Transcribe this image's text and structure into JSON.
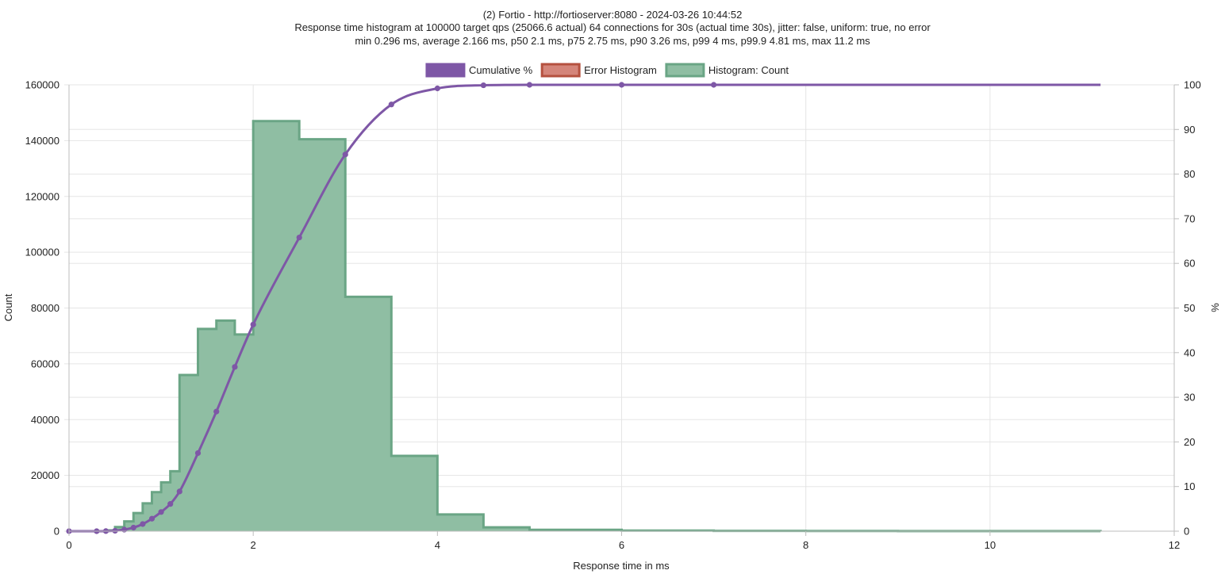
{
  "chart_data": {
    "type": "histogram",
    "title_lines": [
      "(2) Fortio - http://fortioserver:8080 - 2024-03-26 10:44:52",
      "Response time histogram at 100000 target qps (25066.6 actual) 64 connections for 30s (actual time 30s), jitter: false, uniform: true, no error",
      "min 0.296 ms, average 2.166 ms, p50 2.1 ms, p75 2.75 ms, p90 3.26 ms, p99 4 ms, p99.9 4.81 ms, max 11.2 ms"
    ],
    "xlabel": "Response time in ms",
    "ylabel_left": "Count",
    "ylabel_right": "%",
    "xlim": [
      0,
      12
    ],
    "ylim_left": [
      0,
      160000
    ],
    "ylim_right": [
      0,
      100
    ],
    "x_ticks": [
      "0",
      "2",
      "4",
      "6",
      "8",
      "10",
      "12"
    ],
    "y_left_ticks": [
      "0",
      "20000",
      "40000",
      "60000",
      "80000",
      "100000",
      "120000",
      "140000",
      "160000"
    ],
    "y_right_ticks": [
      "0",
      "10",
      "20",
      "30",
      "40",
      "50",
      "60",
      "70",
      "80",
      "90",
      "100"
    ],
    "legend": {
      "position": "top",
      "items": [
        {
          "label": "Cumulative %",
          "fill": "#7e57a6",
          "stroke": "#7e57a6"
        },
        {
          "label": "Error Histogram",
          "fill": "#d4857a",
          "stroke": "#b5513f"
        },
        {
          "label": "Histogram: Count",
          "fill": "#8fbea3",
          "stroke": "#6aa585"
        }
      ]
    },
    "histogram_bins": [
      {
        "start": 0.3,
        "end": 0.4,
        "count": 0
      },
      {
        "start": 0.4,
        "end": 0.5,
        "count": 300
      },
      {
        "start": 0.5,
        "end": 0.6,
        "count": 1500
      },
      {
        "start": 0.6,
        "end": 0.7,
        "count": 3500
      },
      {
        "start": 0.7,
        "end": 0.8,
        "count": 6500
      },
      {
        "start": 0.8,
        "end": 0.9,
        "count": 10000
      },
      {
        "start": 0.9,
        "end": 1.0,
        "count": 14000
      },
      {
        "start": 1.0,
        "end": 1.1,
        "count": 17500
      },
      {
        "start": 1.1,
        "end": 1.2,
        "count": 21500
      },
      {
        "start": 1.2,
        "end": 1.4,
        "count": 56000
      },
      {
        "start": 1.4,
        "end": 1.6,
        "count": 72500
      },
      {
        "start": 1.6,
        "end": 1.8,
        "count": 75500
      },
      {
        "start": 1.8,
        "end": 2.0,
        "count": 70500
      },
      {
        "start": 2.0,
        "end": 2.5,
        "count": 147000
      },
      {
        "start": 2.5,
        "end": 3.0,
        "count": 140500
      },
      {
        "start": 3.0,
        "end": 3.5,
        "count": 84000
      },
      {
        "start": 3.5,
        "end": 4.0,
        "count": 27000
      },
      {
        "start": 4.0,
        "end": 4.5,
        "count": 6000
      },
      {
        "start": 4.5,
        "end": 5.0,
        "count": 1400
      },
      {
        "start": 5.0,
        "end": 6.0,
        "count": 500
      },
      {
        "start": 6.0,
        "end": 7.0,
        "count": 200
      },
      {
        "start": 7.0,
        "end": 8.0,
        "count": 100
      },
      {
        "start": 8.0,
        "end": 9.0,
        "count": 60
      },
      {
        "start": 9.0,
        "end": 10.0,
        "count": 40
      },
      {
        "start": 10.0,
        "end": 11.2,
        "count": 20
      }
    ],
    "error_histogram": [],
    "cumulative": [
      {
        "x": 0,
        "y": 0
      },
      {
        "x": 0.3,
        "y": 0
      },
      {
        "x": 0.4,
        "y": 0.02
      },
      {
        "x": 0.5,
        "y": 0.1
      },
      {
        "x": 0.6,
        "y": 0.35
      },
      {
        "x": 0.7,
        "y": 0.8
      },
      {
        "x": 0.8,
        "y": 1.6
      },
      {
        "x": 0.9,
        "y": 2.8
      },
      {
        "x": 1.0,
        "y": 4.3
      },
      {
        "x": 1.1,
        "y": 6.1
      },
      {
        "x": 1.2,
        "y": 8.9
      },
      {
        "x": 1.4,
        "y": 17.5
      },
      {
        "x": 1.6,
        "y": 26.8
      },
      {
        "x": 1.8,
        "y": 36.8
      },
      {
        "x": 2.0,
        "y": 46.3
      },
      {
        "x": 2.5,
        "y": 65.8
      },
      {
        "x": 3.0,
        "y": 84.4
      },
      {
        "x": 3.5,
        "y": 95.6
      },
      {
        "x": 4.0,
        "y": 99.2
      },
      {
        "x": 4.5,
        "y": 99.9
      },
      {
        "x": 5.0,
        "y": 100
      },
      {
        "x": 6.0,
        "y": 100
      },
      {
        "x": 7.0,
        "y": 100
      },
      {
        "x": 11.2,
        "y": 100
      }
    ],
    "cumulative_markers_x": [
      0,
      0.3,
      0.4,
      0.5,
      0.6,
      0.7,
      0.8,
      0.9,
      1.0,
      1.1,
      1.2,
      1.4,
      1.6,
      1.8,
      2.0,
      2.5,
      3.0,
      3.5,
      4.0,
      4.5,
      5.0,
      6.0,
      7.0
    ],
    "colors": {
      "cumulative": "#7e57a6",
      "histogram_fill": "#8fbea3",
      "histogram_stroke": "#6aa585",
      "error_fill": "#d4857a",
      "error_stroke": "#b5513f"
    }
  }
}
